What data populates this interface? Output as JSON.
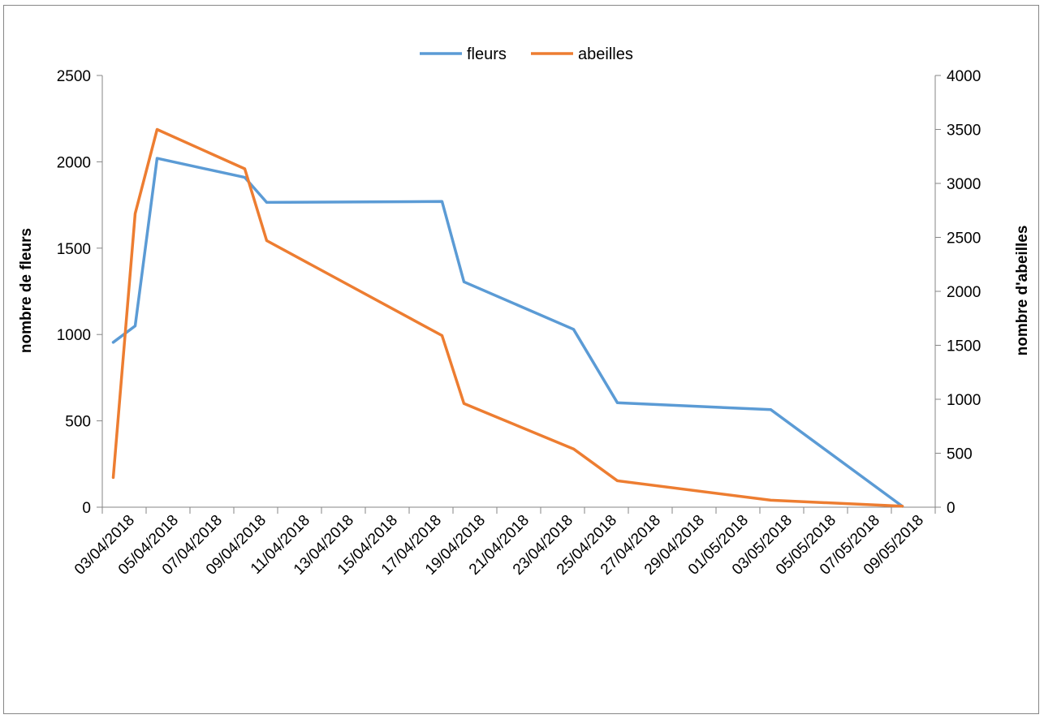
{
  "chart_data": {
    "type": "line",
    "title": "",
    "legend": {
      "position": "top",
      "entries": [
        "fleurs",
        "abeilles"
      ]
    },
    "grid": false,
    "x_axis": {
      "type": "date",
      "tick_labels": [
        "03/04/2018",
        "05/04/2018",
        "07/04/2018",
        "09/04/2018",
        "11/04/2018",
        "13/04/2018",
        "15/04/2018",
        "17/04/2018",
        "19/04/2018",
        "21/04/2018",
        "23/04/2018",
        "25/04/2018",
        "27/04/2018",
        "29/04/2018",
        "01/05/2018",
        "03/05/2018",
        "05/05/2018",
        "07/05/2018",
        "09/05/2018"
      ]
    },
    "y_left": {
      "label": "nombre de fleurs",
      "lim": [
        0,
        2500
      ],
      "ticks": [
        0,
        500,
        1000,
        1500,
        2000,
        2500
      ]
    },
    "y_right": {
      "label": "nombre d'abeilles",
      "lim": [
        0,
        4000
      ],
      "ticks": [
        0,
        500,
        1000,
        1500,
        2000,
        2500,
        3000,
        3500,
        4000
      ]
    },
    "series": [
      {
        "name": "fleurs",
        "axis": "left",
        "color": "#5B9BD5",
        "x": [
          "03/04/2018",
          "04/04/2018",
          "05/04/2018",
          "09/04/2018",
          "10/04/2018",
          "18/04/2018",
          "19/04/2018",
          "24/04/2018",
          "26/04/2018",
          "03/05/2018",
          "09/05/2018"
        ],
        "y": [
          955,
          1050,
          2020,
          1910,
          1765,
          1770,
          1305,
          1030,
          605,
          565,
          5
        ]
      },
      {
        "name": "abeilles",
        "axis": "right",
        "color": "#ED7D31",
        "x": [
          "03/04/2018",
          "04/04/2018",
          "05/04/2018",
          "09/04/2018",
          "10/04/2018",
          "18/04/2018",
          "19/04/2018",
          "24/04/2018",
          "26/04/2018",
          "03/05/2018",
          "09/05/2018"
        ],
        "y": [
          275,
          2720,
          3500,
          3135,
          2470,
          1590,
          960,
          540,
          245,
          65,
          10
        ]
      }
    ]
  }
}
